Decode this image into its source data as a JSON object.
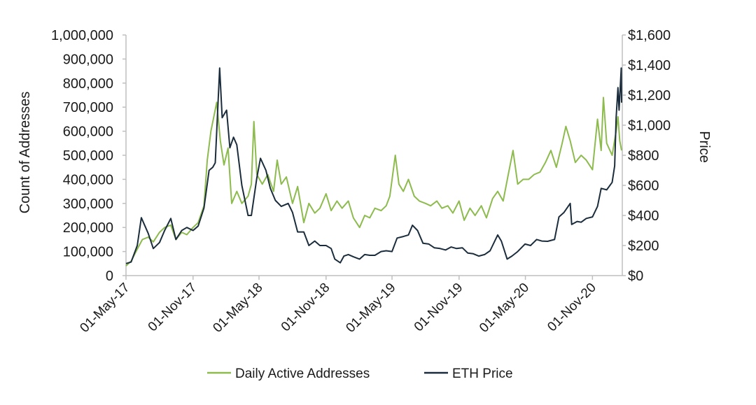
{
  "chart_data": {
    "type": "line",
    "title": "",
    "xlabel": "",
    "ylabel_left": "Count of Addresses",
    "ylabel_right": "Price",
    "ylim_left": [
      0,
      1000000
    ],
    "ylim_right": [
      0,
      1600
    ],
    "xlim": [
      "2017-05-01",
      "2021-01-20"
    ],
    "grid": false,
    "legend_position": "bottom",
    "left_ticks": [
      "0",
      "100,000",
      "200,000",
      "300,000",
      "400,000",
      "500,000",
      "600,000",
      "700,000",
      "800,000",
      "900,000",
      "1,000,000"
    ],
    "right_ticks": [
      "$0",
      "$200",
      "$400",
      "$600",
      "$800",
      "$1,000",
      "$1,200",
      "$1,400",
      "$1,600"
    ],
    "x_ticks": [
      {
        "date": "2017-05-01",
        "label": "01-May-17"
      },
      {
        "date": "2017-11-01",
        "label": "01-Nov-17"
      },
      {
        "date": "2018-05-01",
        "label": "01-May-18"
      },
      {
        "date": "2018-11-01",
        "label": "01-Nov-18"
      },
      {
        "date": "2019-05-01",
        "label": "01-May-19"
      },
      {
        "date": "2019-11-01",
        "label": "01-Nov-19"
      },
      {
        "date": "2020-05-01",
        "label": "01-May-20"
      },
      {
        "date": "2020-11-01",
        "label": "01-Nov-20"
      }
    ],
    "series": [
      {
        "name": "Daily Active Addresses",
        "axis": "left",
        "color": "#8dbb4e",
        "points": [
          [
            "2017-05-01",
            40000
          ],
          [
            "2017-05-15",
            60000
          ],
          [
            "2017-06-01",
            110000
          ],
          [
            "2017-06-15",
            150000
          ],
          [
            "2017-07-01",
            160000
          ],
          [
            "2017-07-15",
            140000
          ],
          [
            "2017-08-01",
            180000
          ],
          [
            "2017-08-15",
            200000
          ],
          [
            "2017-09-01",
            210000
          ],
          [
            "2017-09-15",
            150000
          ],
          [
            "2017-10-01",
            180000
          ],
          [
            "2017-10-15",
            170000
          ],
          [
            "2017-11-01",
            200000
          ],
          [
            "2017-11-15",
            220000
          ],
          [
            "2017-12-01",
            290000
          ],
          [
            "2017-12-10",
            480000
          ],
          [
            "2017-12-20",
            600000
          ],
          [
            "2018-01-05",
            720000
          ],
          [
            "2018-01-15",
            560000
          ],
          [
            "2018-01-25",
            460000
          ],
          [
            "2018-02-05",
            530000
          ],
          [
            "2018-02-15",
            300000
          ],
          [
            "2018-03-01",
            350000
          ],
          [
            "2018-03-15",
            300000
          ],
          [
            "2018-04-01",
            330000
          ],
          [
            "2018-04-10",
            380000
          ],
          [
            "2018-04-17",
            640000
          ],
          [
            "2018-04-25",
            420000
          ],
          [
            "2018-05-10",
            380000
          ],
          [
            "2018-05-25",
            420000
          ],
          [
            "2018-06-10",
            350000
          ],
          [
            "2018-06-20",
            480000
          ],
          [
            "2018-07-01",
            380000
          ],
          [
            "2018-07-15",
            410000
          ],
          [
            "2018-08-01",
            300000
          ],
          [
            "2018-08-15",
            370000
          ],
          [
            "2018-09-01",
            220000
          ],
          [
            "2018-09-15",
            300000
          ],
          [
            "2018-10-01",
            260000
          ],
          [
            "2018-10-15",
            280000
          ],
          [
            "2018-11-01",
            340000
          ],
          [
            "2018-11-15",
            270000
          ],
          [
            "2018-12-01",
            310000
          ],
          [
            "2018-12-15",
            280000
          ],
          [
            "2019-01-01",
            310000
          ],
          [
            "2019-01-15",
            240000
          ],
          [
            "2019-02-01",
            200000
          ],
          [
            "2019-02-15",
            250000
          ],
          [
            "2019-03-01",
            240000
          ],
          [
            "2019-03-15",
            280000
          ],
          [
            "2019-04-01",
            270000
          ],
          [
            "2019-04-15",
            290000
          ],
          [
            "2019-04-25",
            330000
          ],
          [
            "2019-05-10",
            500000
          ],
          [
            "2019-05-20",
            380000
          ],
          [
            "2019-06-01",
            350000
          ],
          [
            "2019-06-15",
            400000
          ],
          [
            "2019-07-01",
            330000
          ],
          [
            "2019-07-15",
            310000
          ],
          [
            "2019-08-01",
            300000
          ],
          [
            "2019-08-15",
            290000
          ],
          [
            "2019-09-01",
            310000
          ],
          [
            "2019-09-15",
            280000
          ],
          [
            "2019-10-01",
            290000
          ],
          [
            "2019-10-15",
            260000
          ],
          [
            "2019-11-01",
            310000
          ],
          [
            "2019-11-15",
            230000
          ],
          [
            "2019-12-01",
            280000
          ],
          [
            "2019-12-15",
            250000
          ],
          [
            "2020-01-01",
            290000
          ],
          [
            "2020-01-15",
            240000
          ],
          [
            "2020-02-01",
            320000
          ],
          [
            "2020-02-15",
            350000
          ],
          [
            "2020-03-01",
            310000
          ],
          [
            "2020-03-15",
            420000
          ],
          [
            "2020-03-28",
            520000
          ],
          [
            "2020-04-10",
            380000
          ],
          [
            "2020-04-25",
            400000
          ],
          [
            "2020-05-10",
            400000
          ],
          [
            "2020-05-25",
            420000
          ],
          [
            "2020-06-10",
            430000
          ],
          [
            "2020-06-25",
            470000
          ],
          [
            "2020-07-10",
            520000
          ],
          [
            "2020-07-25",
            450000
          ],
          [
            "2020-08-10",
            550000
          ],
          [
            "2020-08-20",
            620000
          ],
          [
            "2020-09-01",
            560000
          ],
          [
            "2020-09-15",
            470000
          ],
          [
            "2020-10-01",
            500000
          ],
          [
            "2020-10-15",
            480000
          ],
          [
            "2020-11-01",
            440000
          ],
          [
            "2020-11-15",
            650000
          ],
          [
            "2020-11-25",
            520000
          ],
          [
            "2020-12-01",
            740000
          ],
          [
            "2020-12-10",
            550000
          ],
          [
            "2020-12-25",
            500000
          ],
          [
            "2021-01-05",
            600000
          ],
          [
            "2021-01-10",
            660000
          ],
          [
            "2021-01-15",
            560000
          ],
          [
            "2021-01-20",
            520000
          ]
        ]
      },
      {
        "name": "ETH Price",
        "axis": "right",
        "color": "#1b2d3c",
        "points": [
          [
            "2017-05-01",
            80
          ],
          [
            "2017-05-15",
            90
          ],
          [
            "2017-06-01",
            200
          ],
          [
            "2017-06-12",
            385
          ],
          [
            "2017-07-01",
            280
          ],
          [
            "2017-07-15",
            180
          ],
          [
            "2017-08-01",
            220
          ],
          [
            "2017-08-15",
            300
          ],
          [
            "2017-09-01",
            380
          ],
          [
            "2017-09-15",
            240
          ],
          [
            "2017-10-01",
            300
          ],
          [
            "2017-10-15",
            320
          ],
          [
            "2017-11-01",
            300
          ],
          [
            "2017-11-15",
            330
          ],
          [
            "2017-12-01",
            450
          ],
          [
            "2017-12-15",
            700
          ],
          [
            "2017-12-25",
            720
          ],
          [
            "2018-01-01",
            750
          ],
          [
            "2018-01-13",
            1380
          ],
          [
            "2018-01-20",
            1050
          ],
          [
            "2018-02-01",
            1100
          ],
          [
            "2018-02-10",
            850
          ],
          [
            "2018-02-20",
            920
          ],
          [
            "2018-03-01",
            870
          ],
          [
            "2018-03-15",
            600
          ],
          [
            "2018-04-01",
            400
          ],
          [
            "2018-04-10",
            400
          ],
          [
            "2018-04-25",
            650
          ],
          [
            "2018-05-05",
            780
          ],
          [
            "2018-05-20",
            700
          ],
          [
            "2018-06-01",
            580
          ],
          [
            "2018-06-15",
            500
          ],
          [
            "2018-07-01",
            460
          ],
          [
            "2018-07-20",
            480
          ],
          [
            "2018-08-01",
            420
          ],
          [
            "2018-08-15",
            290
          ],
          [
            "2018-09-01",
            290
          ],
          [
            "2018-09-15",
            200
          ],
          [
            "2018-10-01",
            230
          ],
          [
            "2018-10-15",
            200
          ],
          [
            "2018-11-01",
            200
          ],
          [
            "2018-11-15",
            180
          ],
          [
            "2018-11-25",
            110
          ],
          [
            "2018-12-10",
            85
          ],
          [
            "2018-12-20",
            130
          ],
          [
            "2019-01-01",
            140
          ],
          [
            "2019-01-15",
            125
          ],
          [
            "2019-02-01",
            110
          ],
          [
            "2019-02-15",
            140
          ],
          [
            "2019-03-01",
            135
          ],
          [
            "2019-03-15",
            135
          ],
          [
            "2019-04-01",
            160
          ],
          [
            "2019-04-15",
            165
          ],
          [
            "2019-05-01",
            160
          ],
          [
            "2019-05-15",
            250
          ],
          [
            "2019-06-01",
            260
          ],
          [
            "2019-06-15",
            270
          ],
          [
            "2019-06-26",
            335
          ],
          [
            "2019-07-10",
            300
          ],
          [
            "2019-07-25",
            215
          ],
          [
            "2019-08-10",
            210
          ],
          [
            "2019-08-25",
            185
          ],
          [
            "2019-09-10",
            180
          ],
          [
            "2019-09-25",
            170
          ],
          [
            "2019-10-10",
            190
          ],
          [
            "2019-10-25",
            180
          ],
          [
            "2019-11-10",
            185
          ],
          [
            "2019-11-25",
            150
          ],
          [
            "2019-12-10",
            145
          ],
          [
            "2019-12-25",
            130
          ],
          [
            "2020-01-10",
            140
          ],
          [
            "2020-01-25",
            165
          ],
          [
            "2020-02-15",
            270
          ],
          [
            "2020-02-25",
            230
          ],
          [
            "2020-03-12",
            110
          ],
          [
            "2020-03-25",
            130
          ],
          [
            "2020-04-10",
            160
          ],
          [
            "2020-04-30",
            210
          ],
          [
            "2020-05-15",
            200
          ],
          [
            "2020-06-01",
            240
          ],
          [
            "2020-06-15",
            230
          ],
          [
            "2020-07-01",
            228
          ],
          [
            "2020-07-20",
            240
          ],
          [
            "2020-08-01",
            390
          ],
          [
            "2020-08-15",
            420
          ],
          [
            "2020-09-01",
            480
          ],
          [
            "2020-09-05",
            340
          ],
          [
            "2020-09-20",
            360
          ],
          [
            "2020-10-01",
            355
          ],
          [
            "2020-10-15",
            380
          ],
          [
            "2020-11-01",
            390
          ],
          [
            "2020-11-15",
            460
          ],
          [
            "2020-11-25",
            580
          ],
          [
            "2020-12-10",
            570
          ],
          [
            "2020-12-25",
            620
          ],
          [
            "2021-01-01",
            730
          ],
          [
            "2021-01-05",
            1050
          ],
          [
            "2021-01-10",
            1250
          ],
          [
            "2021-01-13",
            1100
          ],
          [
            "2021-01-19",
            1380
          ],
          [
            "2021-01-20",
            1150
          ]
        ]
      }
    ]
  }
}
